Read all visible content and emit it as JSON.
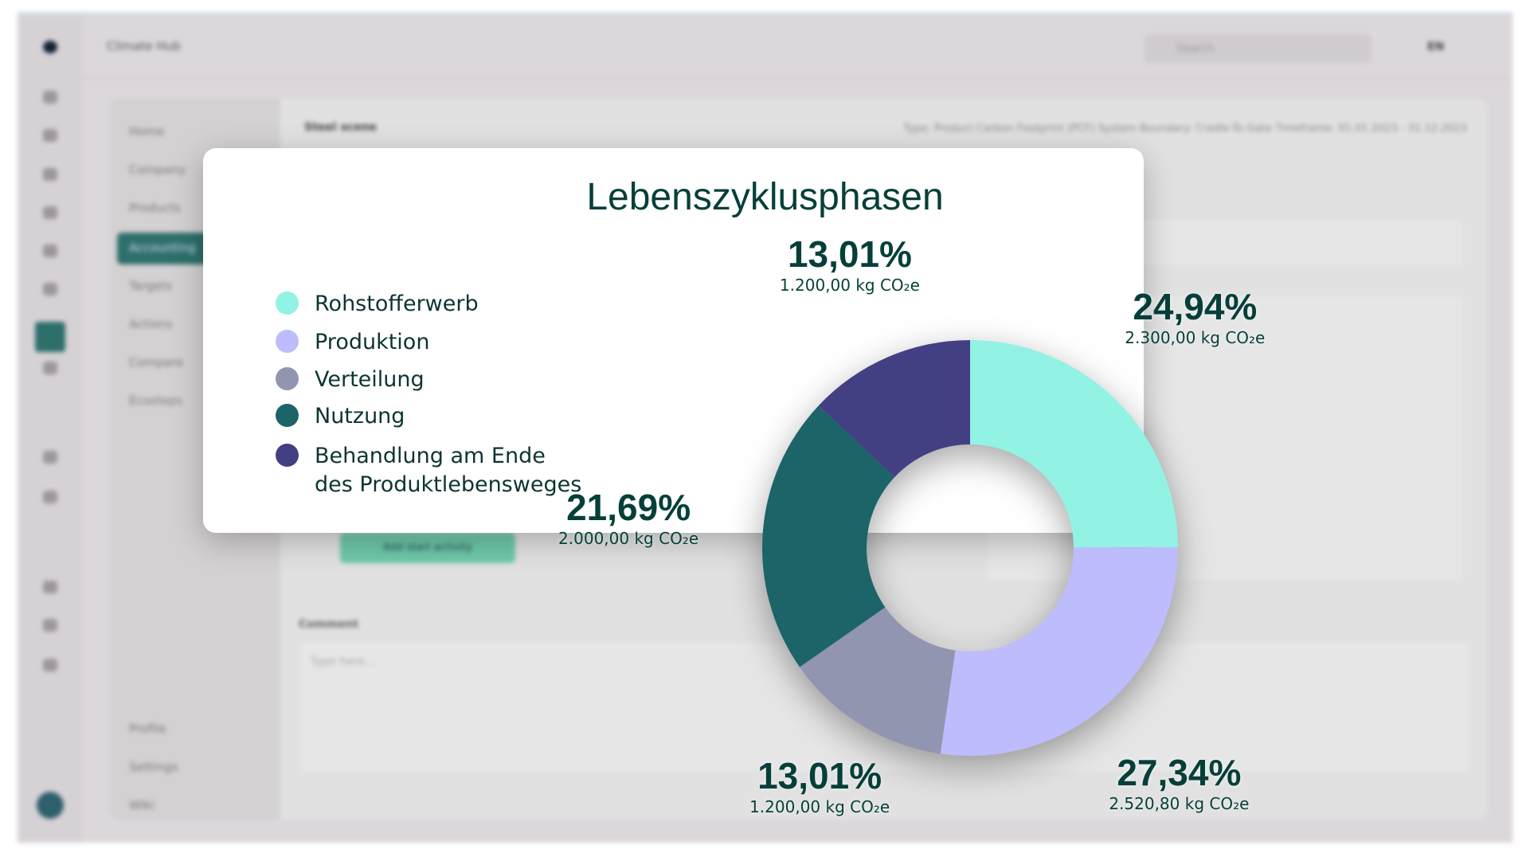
{
  "background_app": {
    "app_name": "Climate Hub",
    "search_placeholder": "Search",
    "language": "EN",
    "nav": [
      "Home",
      "Company",
      "Products",
      "Accounting",
      "Targets",
      "Actions",
      "Compare",
      "Ecosteps"
    ],
    "nav_bottom": [
      "Profile",
      "Settings",
      "Wiki"
    ],
    "scene_title": "Steel scene",
    "meta": "Type: Product Carbon Footprint (PCF)   System Boundary: Cradle-To-Gate   Timeframe: 01.01.2023 - 31.12.2023",
    "add_button": "Add start activity",
    "comment_label": "Comment",
    "comment_placeholder": "Type here..."
  },
  "chart_data": {
    "type": "pie",
    "donut": true,
    "title": "Lebenszyklusphasen",
    "legend_position": "left",
    "unit": "kg CO₂e",
    "slices": [
      {
        "name": "Rohstofferwerb",
        "percent": 24.94,
        "percent_label": "24,94%",
        "value": 2300.0,
        "value_label": "2.300,00 kg CO₂e",
        "color": "#92f2e3"
      },
      {
        "name": "Produktion",
        "percent": 27.34,
        "percent_label": "27,34%",
        "value": 2520.8,
        "value_label": "2.520,80 kg CO₂e",
        "color": "#bdbcfc"
      },
      {
        "name": "Verteilung",
        "percent": 13.01,
        "percent_label": "13,01%",
        "value": 1200.0,
        "value_label": "1.200,00 kg CO₂e",
        "color": "#9195b0"
      },
      {
        "name": "Nutzung",
        "percent": 21.69,
        "percent_label": "21,69%",
        "value": 2000.0,
        "value_label": "2.000,00 kg CO₂e",
        "color": "#1c6468"
      },
      {
        "name": "Behandlung am Ende des Produktlebensweges",
        "legend_lines": [
          "Behandlung am Ende",
          "des Produktlebensweges"
        ],
        "percent": 13.01,
        "percent_label": "13,01%",
        "value": 1200.0,
        "value_label": "1.200,00 kg CO₂e",
        "color": "#433f83"
      }
    ]
  }
}
